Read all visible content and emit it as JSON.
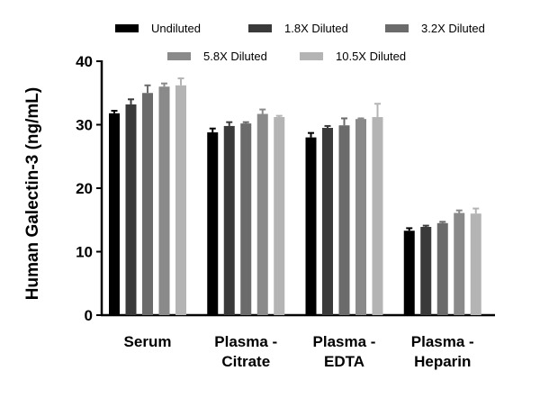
{
  "chart_data": {
    "type": "bar",
    "ylabel": "Human Galectin-3 (ng/mL)",
    "ylim": [
      0,
      40
    ],
    "yticks": [
      0,
      10,
      20,
      30,
      40
    ],
    "categories": [
      [
        "Serum"
      ],
      [
        "Plasma -",
        "Citrate"
      ],
      [
        "Plasma -",
        "EDTA"
      ],
      [
        "Plasma -",
        "Heparin"
      ]
    ],
    "series": [
      {
        "name": "Undiluted",
        "color": "#000000",
        "values": [
          31.8,
          28.8,
          28.0,
          13.3
        ],
        "errors": [
          0.4,
          0.6,
          0.7,
          0.4
        ]
      },
      {
        "name": "1.8X Diluted",
        "color": "#3a3a3a",
        "values": [
          33.2,
          29.8,
          29.5,
          13.9
        ],
        "errors": [
          0.8,
          0.6,
          0.3,
          0.2
        ]
      },
      {
        "name": "3.2X Diluted",
        "color": "#6b6b6b",
        "values": [
          35.0,
          30.2,
          29.9,
          14.5
        ],
        "errors": [
          1.2,
          0.2,
          1.1,
          0.2
        ]
      },
      {
        "name": "5.8X Diluted",
        "color": "#8a8a8a",
        "values": [
          36.0,
          31.7,
          30.9,
          16.1
        ],
        "errors": [
          0.5,
          0.7,
          0.1,
          0.4
        ]
      },
      {
        "name": "10.5X Diluted",
        "color": "#b4b4b4",
        "values": [
          36.2,
          31.2,
          31.2,
          16.0
        ],
        "errors": [
          1.1,
          0.2,
          2.1,
          0.8
        ]
      }
    ],
    "legend_position": "top"
  }
}
